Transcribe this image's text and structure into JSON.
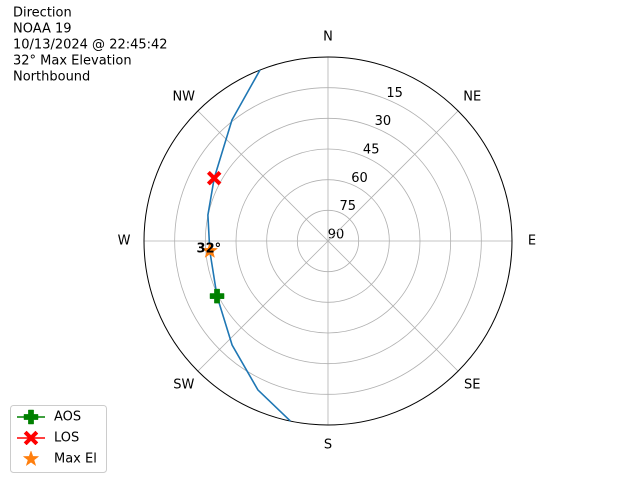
{
  "chart_data": {
    "type": "polar",
    "title_lines": [
      "Direction",
      "NOAA 19",
      "10/13/2024 @ 22:45:42",
      "32° Max Elevation",
      "Northbound"
    ],
    "theta_ticks": [
      {
        "value": 0,
        "label": "N"
      },
      {
        "value": 45,
        "label": "NE"
      },
      {
        "value": 90,
        "label": "E"
      },
      {
        "value": 135,
        "label": "SE"
      },
      {
        "value": 180,
        "label": "S"
      },
      {
        "value": 225,
        "label": "SW"
      },
      {
        "value": 270,
        "label": "W"
      },
      {
        "value": 315,
        "label": "NW"
      }
    ],
    "rlim": [
      90,
      0
    ],
    "rticks": [
      15,
      30,
      45,
      60,
      75,
      90
    ],
    "grid": true,
    "track": {
      "color": "#1f77b4",
      "azimuth": [
        338.3,
        321.6,
        298.9,
        282.2,
        265.2,
        243.6,
        222.7,
        205.2,
        191.8
      ],
      "elevation": [
        0,
        14.4,
        26.4,
        29.9,
        32,
        29.4,
        20.8,
        9.5,
        0
      ]
    },
    "markers": [
      {
        "name": "AOS",
        "color": "#008000",
        "marker": "plus",
        "line": true,
        "azimuth": 243.6,
        "elevation": 29.4
      },
      {
        "name": "LOS",
        "color": "#ff0000",
        "marker": "x",
        "line": true,
        "azimuth": 298.9,
        "elevation": 26.4
      },
      {
        "name": "Max El",
        "color": "#ff7f0e",
        "marker": "star",
        "line": false,
        "azimuth": 265.2,
        "elevation": 32,
        "value_label": "32°"
      }
    ],
    "legend": "lower left"
  }
}
